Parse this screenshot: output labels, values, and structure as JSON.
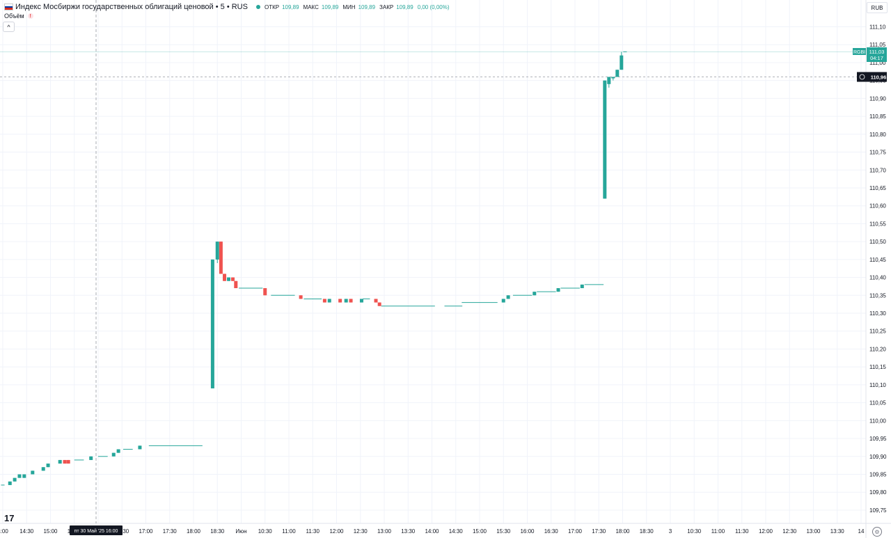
{
  "header": {
    "title": "Индекс Мосбиржи государственных облигаций ценовой • 5 • RUS",
    "open_label": "ОТКР",
    "open": "109,89",
    "high_label": "МАКС",
    "high": "109,89",
    "low_label": "МИН",
    "low": "109,89",
    "close_label": "ЗАКР",
    "close": "109,89",
    "change": "0,00 (0,00%)"
  },
  "volume_label": "Объём",
  "collapse_glyph": "^",
  "currency": "RUB",
  "logo_text": "17",
  "settings_glyph": "⚙",
  "colors": {
    "up": "#26a69a",
    "down": "#ef5350",
    "grid": "#f0f3fa",
    "axis_text": "#131722"
  },
  "chart_data": {
    "type": "candlestick",
    "title": "Индекс Мосбиржи государственных облигаций ценовой",
    "ylim": [
      109.73,
      111.14
    ],
    "y_ticks": [
      "111,10",
      "111,05",
      "111,00",
      "110,95",
      "110,90",
      "110,85",
      "110,80",
      "110,75",
      "110,70",
      "110,65",
      "110,60",
      "110,55",
      "110,50",
      "110,45",
      "110,40",
      "110,35",
      "110,30",
      "110,25",
      "110,20",
      "110,15",
      "110,10",
      "110,05",
      "110,00",
      "109,95",
      "109,90",
      "109,85",
      "109,80",
      "109,75"
    ],
    "x_ticks": [
      "4:00",
      "14:30",
      "15:00",
      "15:30",
      "16:00",
      "16:30",
      "17:00",
      "17:30",
      "18:00",
      "18:30",
      "Июн",
      "10:30",
      "11:00",
      "11:30",
      "12:00",
      "12:30",
      "13:00",
      "13:30",
      "14:00",
      "14:30",
      "15:00",
      "15:30",
      "16:00",
      "16:30",
      "17:00",
      "17:30",
      "18:00",
      "18:30",
      "3",
      "10:30",
      "11:00",
      "11:30",
      "12:00",
      "12:30",
      "13:00",
      "13:30",
      "14"
    ],
    "crosshair_label": "пт 30 Май '25   16:00",
    "current_label": {
      "symbol": "RGBI",
      "price": "111,03",
      "timer": "04:17"
    },
    "crosshair_price": "110,96",
    "candles": [
      {
        "t": 0,
        "o": 109.82,
        "h": 109.82,
        "l": 109.82,
        "c": 109.82,
        "w": 0.3
      },
      {
        "t": 0.6,
        "o": 109.82,
        "h": 109.82,
        "l": 109.82,
        "c": 109.83
      },
      {
        "t": 1,
        "o": 109.83,
        "h": 109.84,
        "l": 109.83,
        "c": 109.84
      },
      {
        "t": 1.4,
        "o": 109.84,
        "h": 109.85,
        "l": 109.84,
        "c": 109.85
      },
      {
        "t": 1.8,
        "o": 109.84,
        "h": 109.85,
        "l": 109.84,
        "c": 109.85
      },
      {
        "t": 2.5,
        "o": 109.85,
        "h": 109.86,
        "l": 109.85,
        "c": 109.86
      },
      {
        "t": 3.4,
        "o": 109.86,
        "h": 109.87,
        "l": 109.86,
        "c": 109.87
      },
      {
        "t": 3.8,
        "o": 109.87,
        "h": 109.88,
        "l": 109.87,
        "c": 109.88
      },
      {
        "t": 4.8,
        "o": 109.88,
        "h": 109.89,
        "l": 109.88,
        "c": 109.89
      },
      {
        "t": 5.2,
        "o": 109.89,
        "h": 109.89,
        "l": 109.88,
        "c": 109.88
      },
      {
        "t": 5.5,
        "o": 109.89,
        "h": 109.89,
        "l": 109.88,
        "c": 109.88
      },
      {
        "t": 6.4,
        "o": 109.89,
        "h": 109.89,
        "l": 109.89,
        "c": 109.89,
        "w": 0.8
      },
      {
        "t": 7.4,
        "o": 109.89,
        "h": 109.9,
        "l": 109.89,
        "c": 109.9
      },
      {
        "t": 8.4,
        "o": 109.9,
        "h": 109.9,
        "l": 109.9,
        "c": 109.9,
        "w": 0.8
      },
      {
        "t": 9.3,
        "o": 109.9,
        "h": 109.91,
        "l": 109.9,
        "c": 109.91
      },
      {
        "t": 9.7,
        "o": 109.91,
        "h": 109.92,
        "l": 109.91,
        "c": 109.92
      },
      {
        "t": 10.5,
        "o": 109.92,
        "h": 109.92,
        "l": 109.92,
        "c": 109.92,
        "w": 0.8
      },
      {
        "t": 11.5,
        "o": 109.92,
        "h": 109.93,
        "l": 109.92,
        "c": 109.93
      },
      {
        "t": 14.5,
        "o": 109.93,
        "h": 109.93,
        "l": 109.93,
        "c": 109.93,
        "w": 4.5
      },
      {
        "t": 17.6,
        "o": 110.09,
        "h": 110.45,
        "l": 110.09,
        "c": 110.45
      },
      {
        "t": 18.0,
        "o": 110.45,
        "h": 110.5,
        "l": 110.44,
        "c": 110.5
      },
      {
        "t": 18.3,
        "o": 110.5,
        "h": 110.5,
        "l": 110.41,
        "c": 110.41
      },
      {
        "t": 18.6,
        "o": 110.41,
        "h": 110.41,
        "l": 110.39,
        "c": 110.39
      },
      {
        "t": 18.95,
        "o": 110.39,
        "h": 110.4,
        "l": 110.39,
        "c": 110.4
      },
      {
        "t": 19.3,
        "o": 110.4,
        "h": 110.4,
        "l": 110.39,
        "c": 110.39
      },
      {
        "t": 19.55,
        "o": 110.39,
        "h": 110.39,
        "l": 110.37,
        "c": 110.37
      },
      {
        "t": 20.8,
        "o": 110.37,
        "h": 110.37,
        "l": 110.37,
        "c": 110.37,
        "w": 2
      },
      {
        "t": 22.0,
        "o": 110.37,
        "h": 110.37,
        "l": 110.35,
        "c": 110.35
      },
      {
        "t": 23.5,
        "o": 110.35,
        "h": 110.35,
        "l": 110.35,
        "c": 110.35,
        "w": 2
      },
      {
        "t": 25.0,
        "o": 110.35,
        "h": 110.35,
        "l": 110.34,
        "c": 110.34
      },
      {
        "t": 26.0,
        "o": 110.34,
        "h": 110.34,
        "l": 110.34,
        "c": 110.34,
        "w": 1.5
      },
      {
        "t": 27.0,
        "o": 110.34,
        "h": 110.34,
        "l": 110.33,
        "c": 110.33
      },
      {
        "t": 27.4,
        "o": 110.33,
        "h": 110.34,
        "l": 110.33,
        "c": 110.34
      },
      {
        "t": 28.3,
        "o": 110.34,
        "h": 110.34,
        "l": 110.33,
        "c": 110.33
      },
      {
        "t": 28.8,
        "o": 110.33,
        "h": 110.34,
        "l": 110.33,
        "c": 110.34
      },
      {
        "t": 29.2,
        "o": 110.34,
        "h": 110.34,
        "l": 110.33,
        "c": 110.33
      },
      {
        "t": 30.1,
        "o": 110.33,
        "h": 110.34,
        "l": 110.33,
        "c": 110.34
      },
      {
        "t": 30.5,
        "o": 110.34,
        "h": 110.34,
        "l": 110.34,
        "c": 110.34,
        "w": 0.6
      },
      {
        "t": 31.3,
        "o": 110.34,
        "h": 110.34,
        "l": 110.33,
        "c": 110.33
      },
      {
        "t": 31.6,
        "o": 110.33,
        "h": 110.33,
        "l": 110.32,
        "c": 110.32
      },
      {
        "t": 34.0,
        "o": 110.32,
        "h": 110.33,
        "l": 110.32,
        "c": 110.32,
        "w": 4.5
      },
      {
        "t": 37.8,
        "o": 110.32,
        "h": 110.32,
        "l": 110.32,
        "c": 110.32,
        "w": 1.5
      },
      {
        "t": 40.0,
        "o": 110.33,
        "h": 110.33,
        "l": 110.32,
        "c": 110.33,
        "w": 3
      },
      {
        "t": 42.0,
        "o": 110.33,
        "h": 110.34,
        "l": 110.33,
        "c": 110.34
      },
      {
        "t": 42.4,
        "o": 110.34,
        "h": 110.35,
        "l": 110.34,
        "c": 110.35
      },
      {
        "t": 43.6,
        "o": 110.35,
        "h": 110.35,
        "l": 110.35,
        "c": 110.35,
        "w": 1.6
      },
      {
        "t": 44.6,
        "o": 110.35,
        "h": 110.36,
        "l": 110.35,
        "c": 110.36
      },
      {
        "t": 45.6,
        "o": 110.36,
        "h": 110.36,
        "l": 110.36,
        "c": 110.36,
        "w": 1.6
      },
      {
        "t": 46.6,
        "o": 110.36,
        "h": 110.37,
        "l": 110.36,
        "c": 110.37
      },
      {
        "t": 47.6,
        "o": 110.37,
        "h": 110.37,
        "l": 110.37,
        "c": 110.37,
        "w": 1.6
      },
      {
        "t": 48.6,
        "o": 110.37,
        "h": 110.38,
        "l": 110.37,
        "c": 110.38
      },
      {
        "t": 49.6,
        "o": 110.38,
        "h": 110.38,
        "l": 110.38,
        "c": 110.38,
        "w": 1.6
      },
      {
        "t": 50.5,
        "o": 110.62,
        "h": 110.95,
        "l": 110.62,
        "c": 110.95
      },
      {
        "t": 50.85,
        "o": 110.94,
        "h": 110.96,
        "l": 110.93,
        "c": 110.96
      },
      {
        "t": 51.2,
        "o": 110.96,
        "h": 110.96,
        "l": 110.95,
        "c": 110.96
      },
      {
        "t": 51.55,
        "o": 110.96,
        "h": 110.98,
        "l": 110.96,
        "c": 110.98
      },
      {
        "t": 51.9,
        "o": 110.98,
        "h": 111.03,
        "l": 110.98,
        "c": 111.02
      },
      {
        "t": 52.2,
        "o": 111.03,
        "h": 111.03,
        "l": 111.03,
        "c": 111.03,
        "w": 0.3
      }
    ]
  }
}
